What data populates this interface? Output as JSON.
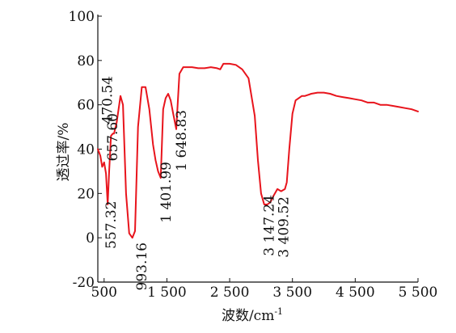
{
  "chart_data": {
    "type": "line",
    "title": "",
    "xlabel": "波数/cm",
    "xlabel_sup": "-1",
    "ylabel": "透过率/%",
    "xlim": [
      400,
      5500
    ],
    "ylim": [
      -20,
      100
    ],
    "x_ticks": [
      {
        "value": 500,
        "label": "500"
      },
      {
        "value": 1500,
        "label": "1 500"
      },
      {
        "value": 2500,
        "label": "2 500"
      },
      {
        "value": 3500,
        "label": "3 500"
      },
      {
        "value": 4500,
        "label": "4 500"
      },
      {
        "value": 5500,
        "label": "5 500"
      }
    ],
    "y_ticks": [
      {
        "value": 100,
        "label": "100"
      },
      {
        "value": 80,
        "label": "80"
      },
      {
        "value": 60,
        "label": "60"
      },
      {
        "value": 40,
        "label": "40"
      },
      {
        "value": 20,
        "label": "20"
      },
      {
        "value": 0,
        "label": "0"
      },
      {
        "value": -20,
        "label": "-20"
      }
    ],
    "grid": false,
    "series": [
      {
        "color": "#e8141c",
        "x": [
          400,
          440,
          470,
          500,
          530,
          557,
          580,
          610,
          640,
          657,
          700,
          760,
          800,
          850,
          900,
          950,
          993,
          1040,
          1100,
          1160,
          1220,
          1280,
          1320,
          1360,
          1402,
          1440,
          1480,
          1520,
          1560,
          1600,
          1649,
          1700,
          1760,
          1820,
          1900,
          2000,
          2100,
          2200,
          2300,
          2350,
          2400,
          2500,
          2600,
          2700,
          2800,
          2900,
          2950,
          3000,
          3050,
          3100,
          3147,
          3200,
          3260,
          3320,
          3380,
          3410,
          3450,
          3500,
          3550,
          3600,
          3650,
          3700,
          3800,
          3900,
          4000,
          4100,
          4200,
          4300,
          4400,
          4500,
          4600,
          4700,
          4800,
          4900,
          5000,
          5100,
          5200,
          5300,
          5400,
          5500
        ],
        "y": [
          40,
          37,
          32,
          34,
          29,
          15,
          30,
          46,
          47,
          47,
          52,
          64,
          60,
          20,
          2,
          0,
          3,
          50,
          68,
          68,
          58,
          42,
          35,
          30,
          27,
          58,
          63,
          65,
          62,
          56,
          49,
          74,
          77,
          77,
          77,
          76.5,
          76.5,
          77,
          76.5,
          76,
          78.5,
          78.5,
          78,
          76,
          72,
          55,
          35,
          20,
          15,
          15,
          16,
          19,
          22,
          21,
          22,
          25,
          40,
          56,
          62,
          63,
          64,
          64,
          65,
          65.5,
          65.5,
          65,
          64,
          63.5,
          63,
          62.5,
          62,
          61,
          61,
          60,
          60,
          59.5,
          59,
          58.5,
          58,
          57
        ]
      }
    ],
    "annotations": [
      {
        "text": "470.54",
        "x": 470
      },
      {
        "text": "557.32",
        "x": 557
      },
      {
        "text": "657.60",
        "x": 657
      },
      {
        "text": "993.16",
        "x": 993
      },
      {
        "text": "1 401.99",
        "x": 1402
      },
      {
        "text": "1 648.83",
        "x": 1649
      },
      {
        "text": "3 147.24",
        "x": 3147
      },
      {
        "text": "3 409.52",
        "x": 3410
      }
    ]
  }
}
